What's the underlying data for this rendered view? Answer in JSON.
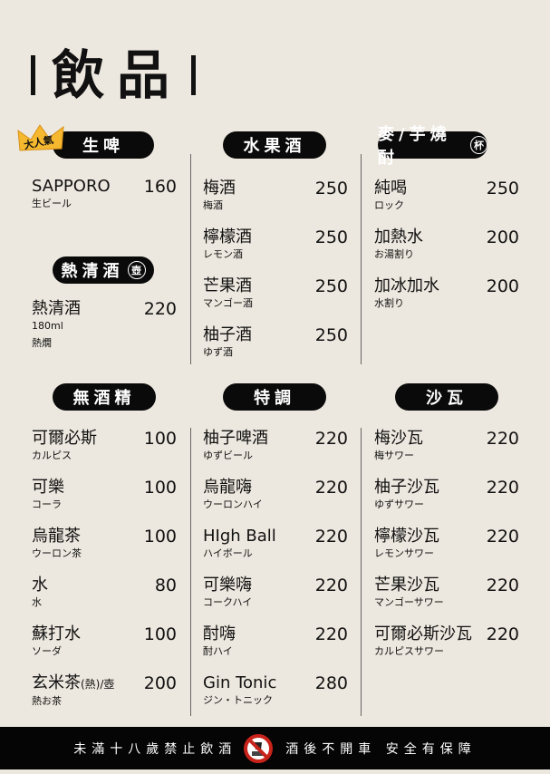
{
  "title": "飲品",
  "badge": "大人氣",
  "sections": [
    {
      "key": "beer",
      "label": "生啤",
      "items": [
        {
          "name": "SAPPORO",
          "sub": "生ビール",
          "price": "160"
        }
      ]
    },
    {
      "key": "sake",
      "label": "熱清酒",
      "circle": "壺",
      "items": [
        {
          "name": "熱清酒",
          "sub": "180ml",
          "sub2": "熱燗",
          "price": "220"
        }
      ]
    },
    {
      "key": "fruit",
      "label": "水果酒",
      "items": [
        {
          "name": "梅酒",
          "sub": "梅酒",
          "price": "250"
        },
        {
          "name": "檸檬酒",
          "sub": "レモン酒",
          "price": "250"
        },
        {
          "name": "芒果酒",
          "sub": "マンゴー酒",
          "price": "250"
        },
        {
          "name": "柚子酒",
          "sub": "ゆず酒",
          "price": "250"
        }
      ]
    },
    {
      "key": "shochu",
      "label": "麥/芋燒酎",
      "circle": "杯",
      "items": [
        {
          "name": "純喝",
          "sub": "ロック",
          "price": "250"
        },
        {
          "name": "加熱水",
          "sub": "お湯割り",
          "price": "200"
        },
        {
          "name": "加冰加水",
          "sub": "水割り",
          "price": "200"
        }
      ]
    },
    {
      "key": "nonalc",
      "label": "無酒精",
      "items": [
        {
          "name": "可爾必斯",
          "sub": "カルピス",
          "price": "100"
        },
        {
          "name": "可樂",
          "sub": "コーラ",
          "price": "100"
        },
        {
          "name": "烏龍茶",
          "sub": "ウーロン茶",
          "price": "100"
        },
        {
          "name": "水",
          "sub": "水",
          "price": "80"
        },
        {
          "name": "蘇打水",
          "sub": "ソーダ",
          "price": "100"
        },
        {
          "name": "玄米茶",
          "name_small": "(熱)/壺",
          "sub": "熱お茶",
          "price": "200"
        }
      ]
    },
    {
      "key": "special",
      "label": "特調",
      "items": [
        {
          "name": "柚子啤酒",
          "sub": "ゆずビール",
          "price": "220"
        },
        {
          "name": "烏龍嗨",
          "sub": "ウーロンハイ",
          "price": "220"
        },
        {
          "name": "HIgh Ball",
          "sub": "ハイボール",
          "price": "220"
        },
        {
          "name": "可樂嗨",
          "sub": "コークハイ",
          "price": "220"
        },
        {
          "name": "酎嗨",
          "sub": "酎ハイ",
          "price": "220"
        },
        {
          "name": "Gin Tonic",
          "sub": "ジン・トニック",
          "price": "280"
        }
      ]
    },
    {
      "key": "sour",
      "label": "沙瓦",
      "items": [
        {
          "name": "梅沙瓦",
          "sub": "梅サワー",
          "price": "220"
        },
        {
          "name": "柚子沙瓦",
          "sub": "ゆずサワー",
          "price": "220"
        },
        {
          "name": "檸檬沙瓦",
          "sub": "レモンサワー",
          "price": "220"
        },
        {
          "name": "芒果沙瓦",
          "sub": "マンゴーサワー",
          "price": "220"
        },
        {
          "name": "可爾必斯沙瓦",
          "sub": "カルピスサワー",
          "price": "220"
        }
      ]
    }
  ],
  "footer": {
    "left": "未滿十八歲禁止飲酒",
    "right": "酒後不開車 安全有保障",
    "icon": "no-drinking-icon"
  },
  "colors": {
    "background": "#ede8df",
    "pill": "#0a0a0a",
    "crown": "#f5b82e",
    "no_sign": "#c8231b"
  }
}
